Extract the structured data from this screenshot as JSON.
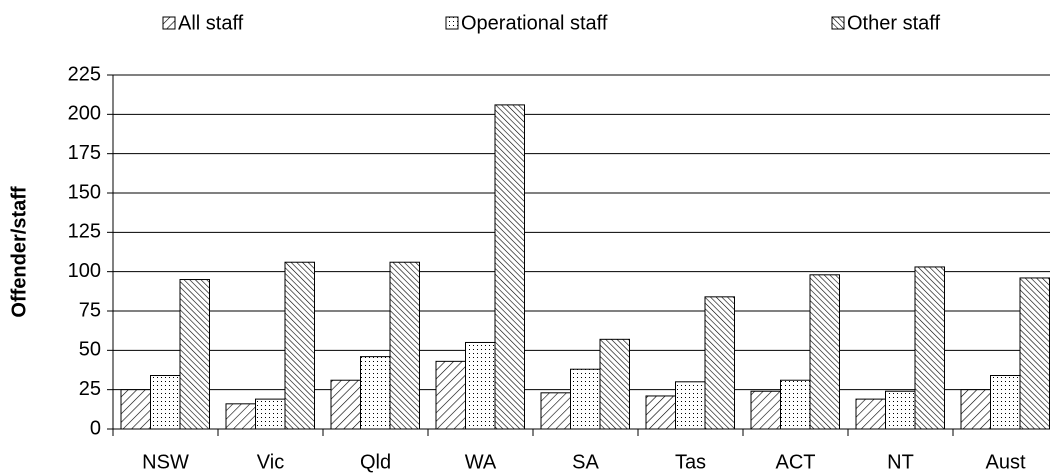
{
  "chart_data": {
    "type": "bar",
    "y_label": "Offender/staff",
    "categories": [
      "NSW",
      "Vic",
      "Qld",
      "WA",
      "SA",
      "Tas",
      "ACT",
      "NT",
      "Aust"
    ],
    "series": [
      {
        "name": "All staff",
        "color": "#000000",
        "pattern": "hatch",
        "values": [
          25,
          16,
          31,
          43,
          23,
          21,
          24,
          19,
          25
        ]
      },
      {
        "name": "Operational staff",
        "color": "#000000",
        "pattern": "dots",
        "values": [
          34,
          19,
          46,
          55,
          38,
          30,
          31,
          24,
          34
        ]
      },
      {
        "name": "Other staff",
        "color": "#000000",
        "pattern": "dense-hatch",
        "values": [
          95,
          106,
          106,
          206,
          57,
          84,
          98,
          103,
          96
        ]
      }
    ],
    "ylim": [
      0,
      225
    ],
    "yticks": [
      0,
      25,
      50,
      75,
      100,
      125,
      150,
      175,
      200,
      225
    ],
    "grid": true,
    "legend": "top"
  }
}
